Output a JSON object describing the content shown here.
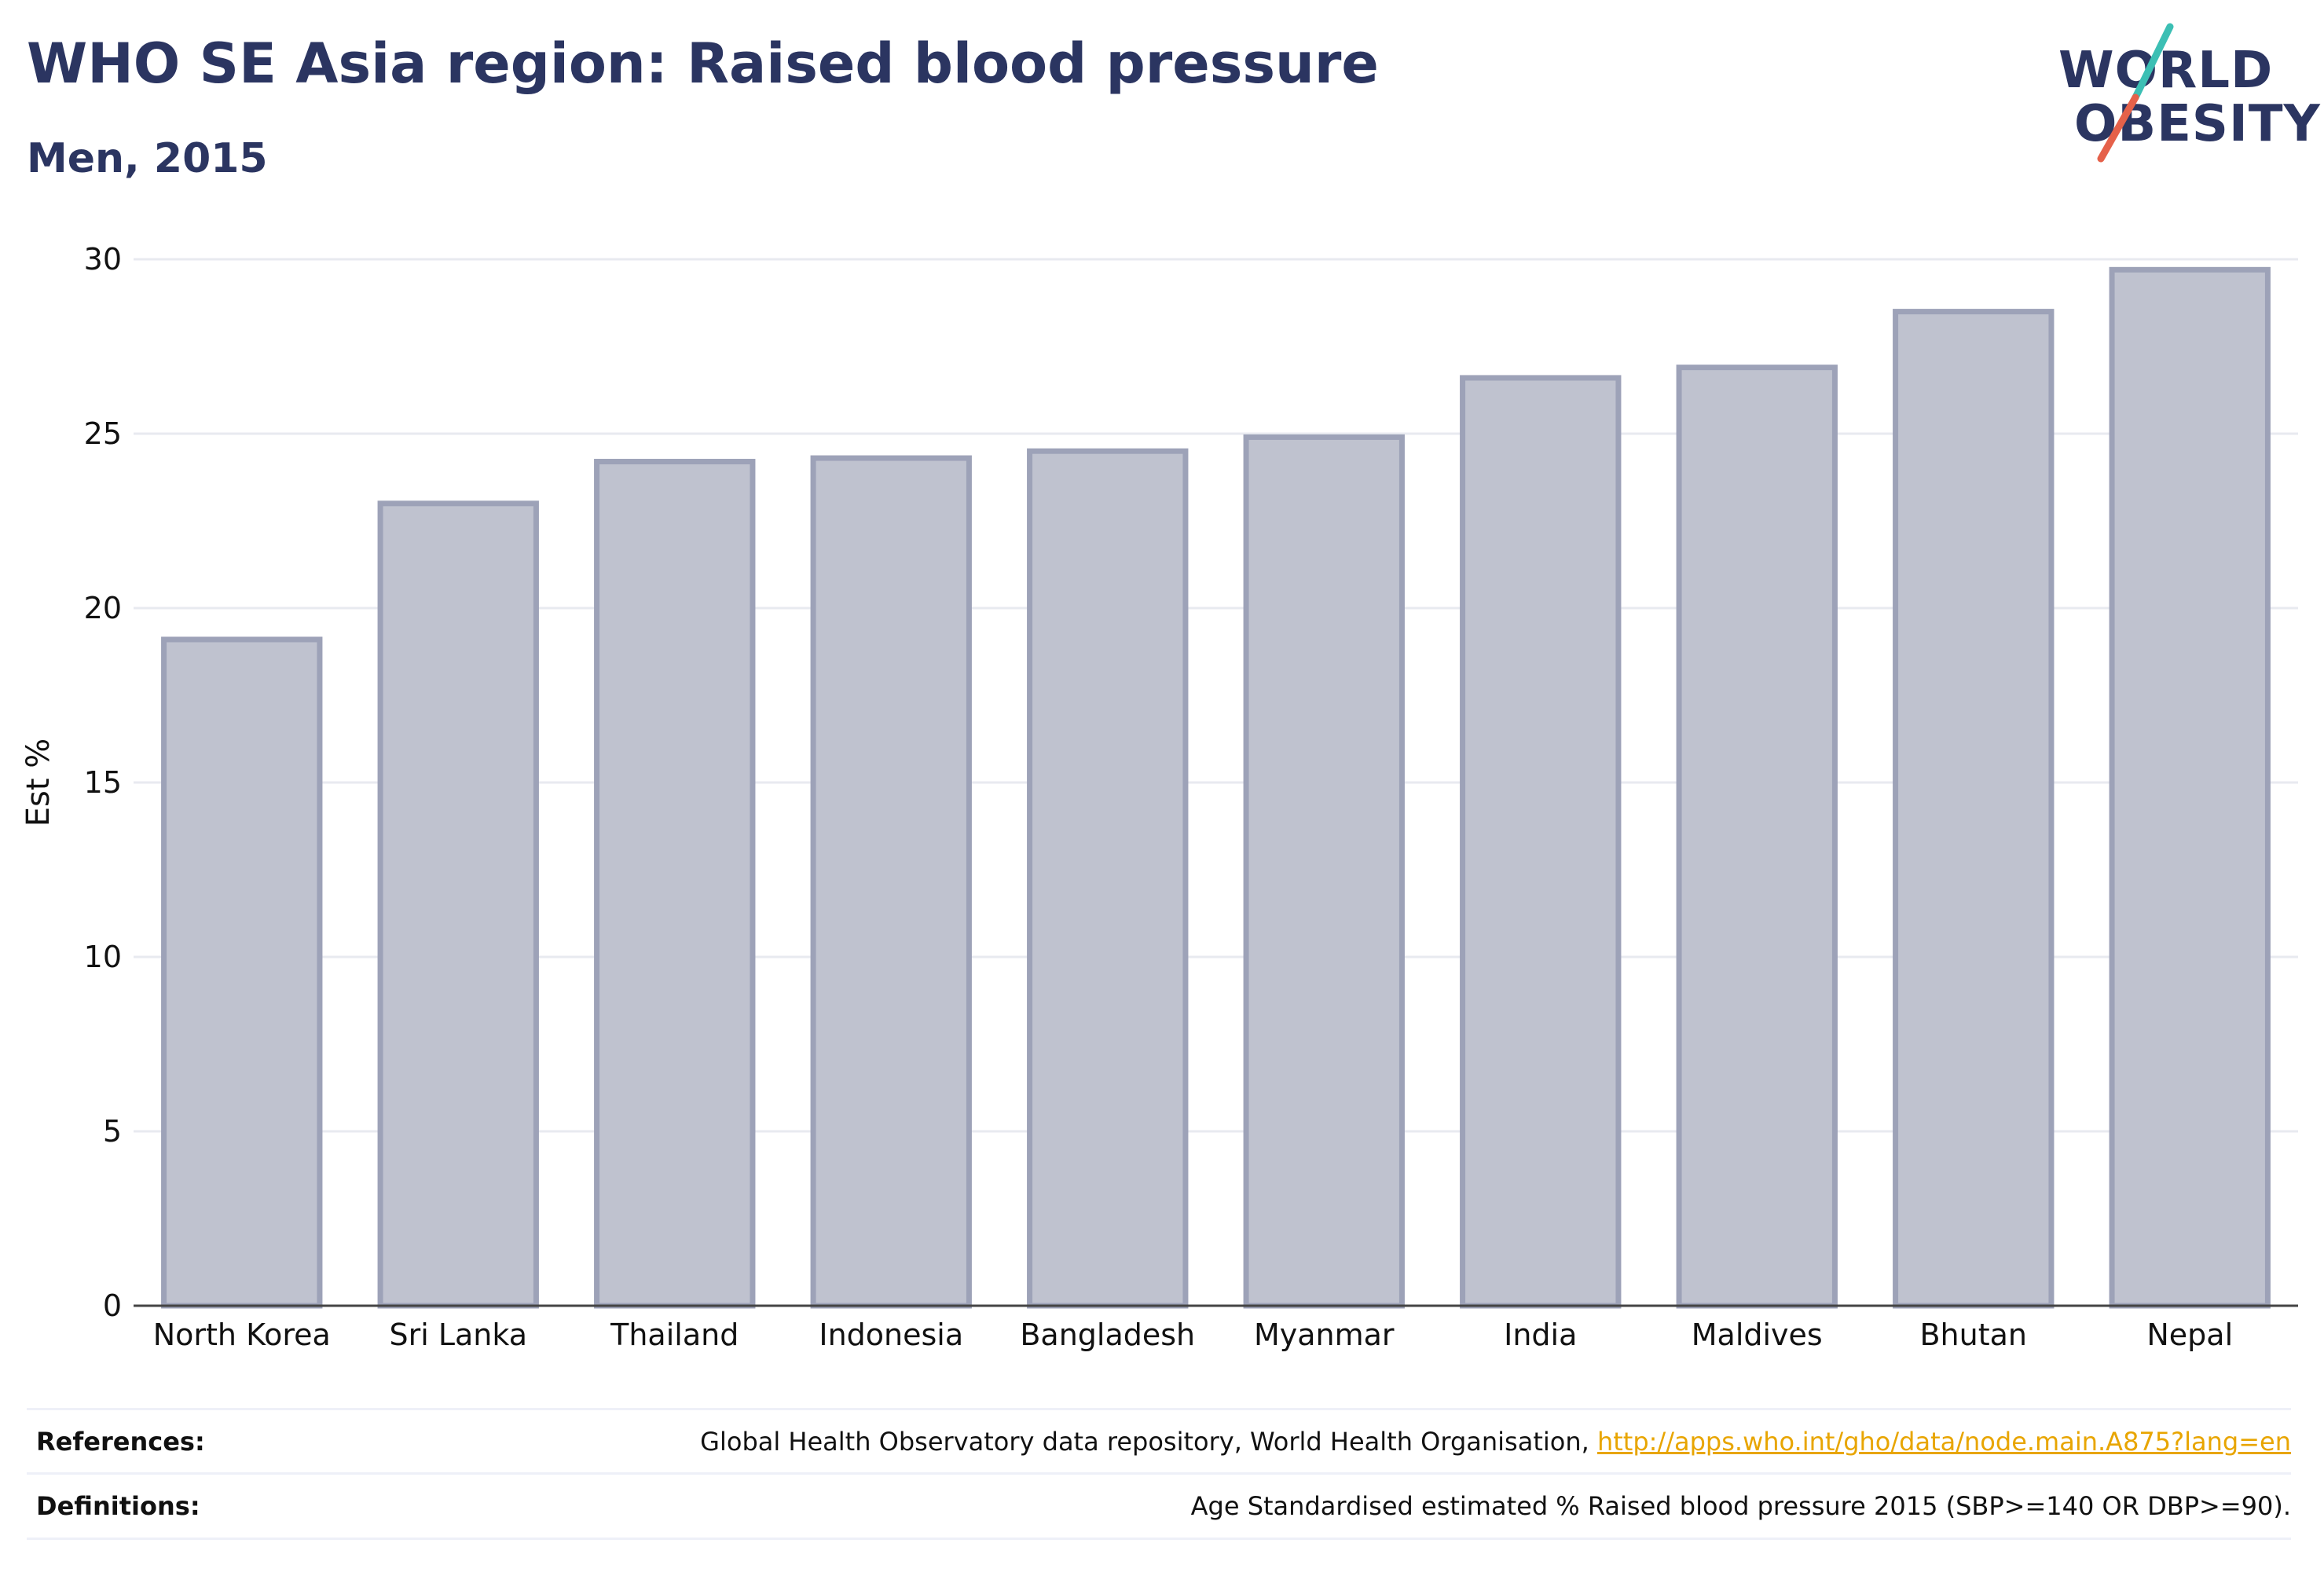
{
  "header": {
    "title": "WHO SE Asia region: Raised blood pressure",
    "subtitle": "Men, 2015"
  },
  "logo": {
    "line1": "WORLD",
    "line2": "OBESITY",
    "text_color": "#2b3561",
    "slash_colors": [
      "#3cbfb4",
      "#e5614a"
    ]
  },
  "chart_data": {
    "type": "bar",
    "categories": [
      "North Korea",
      "Sri Lanka",
      "Thailand",
      "Indonesia",
      "Bangladesh",
      "Myanmar",
      "India",
      "Maldives",
      "Bhutan",
      "Nepal"
    ],
    "values": [
      19.1,
      23.0,
      24.2,
      24.3,
      24.5,
      24.9,
      26.6,
      26.9,
      28.5,
      29.7
    ],
    "ylabel": "Est %",
    "xlabel": "",
    "ylim": [
      0,
      30
    ],
    "yticks": [
      0,
      5,
      10,
      15,
      20,
      25,
      30
    ],
    "grid": true,
    "bar_fill": "#bfc2cf",
    "bar_stroke": "#9da2b8"
  },
  "footer": {
    "references_label": "References:",
    "references_text": "Global Health Observatory data repository, World Health Organisation, ",
    "references_link": "http://apps.who.int/gho/data/node.main.A875?lang=en",
    "definitions_label": "Definitions:",
    "definitions_text": "Age Standardised estimated % Raised blood pressure 2015 (SBP>=140 OR DBP>=90)."
  }
}
